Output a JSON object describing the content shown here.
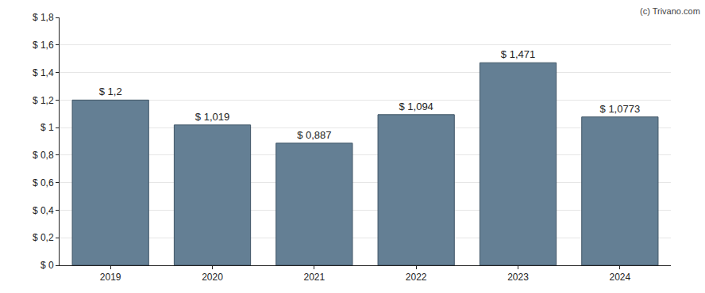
{
  "chart_data": {
    "type": "bar",
    "categories": [
      "2019",
      "2020",
      "2021",
      "2022",
      "2023",
      "2024"
    ],
    "values": [
      1.2,
      1.019,
      0.887,
      1.094,
      1.471,
      1.0773
    ],
    "value_labels": [
      "$ 1,2",
      "$ 1,019",
      "$ 0,887",
      "$ 1,094",
      "$ 1,471",
      "$ 1,0773"
    ],
    "data_labels": true,
    "color": "#647f94",
    "ylim": [
      0,
      1.8
    ],
    "yticks": [
      {
        "value": 0,
        "label": "$ 0"
      },
      {
        "value": 0.2,
        "label": "$ 0,2"
      },
      {
        "value": 0.4,
        "label": "$ 0,4"
      },
      {
        "value": 0.6,
        "label": "$ 0,6"
      },
      {
        "value": 0.8,
        "label": "$ 0,8"
      },
      {
        "value": 1,
        "label": "$ 1"
      },
      {
        "value": 1.2,
        "label": "$ 1,2"
      },
      {
        "value": 1.4,
        "label": "$ 1,4"
      },
      {
        "value": 1.6,
        "label": "$ 1,6"
      },
      {
        "value": 1.8,
        "label": "$ 1,8"
      }
    ],
    "grid": true,
    "annotations": [
      "(c) Trivano.com"
    ]
  }
}
